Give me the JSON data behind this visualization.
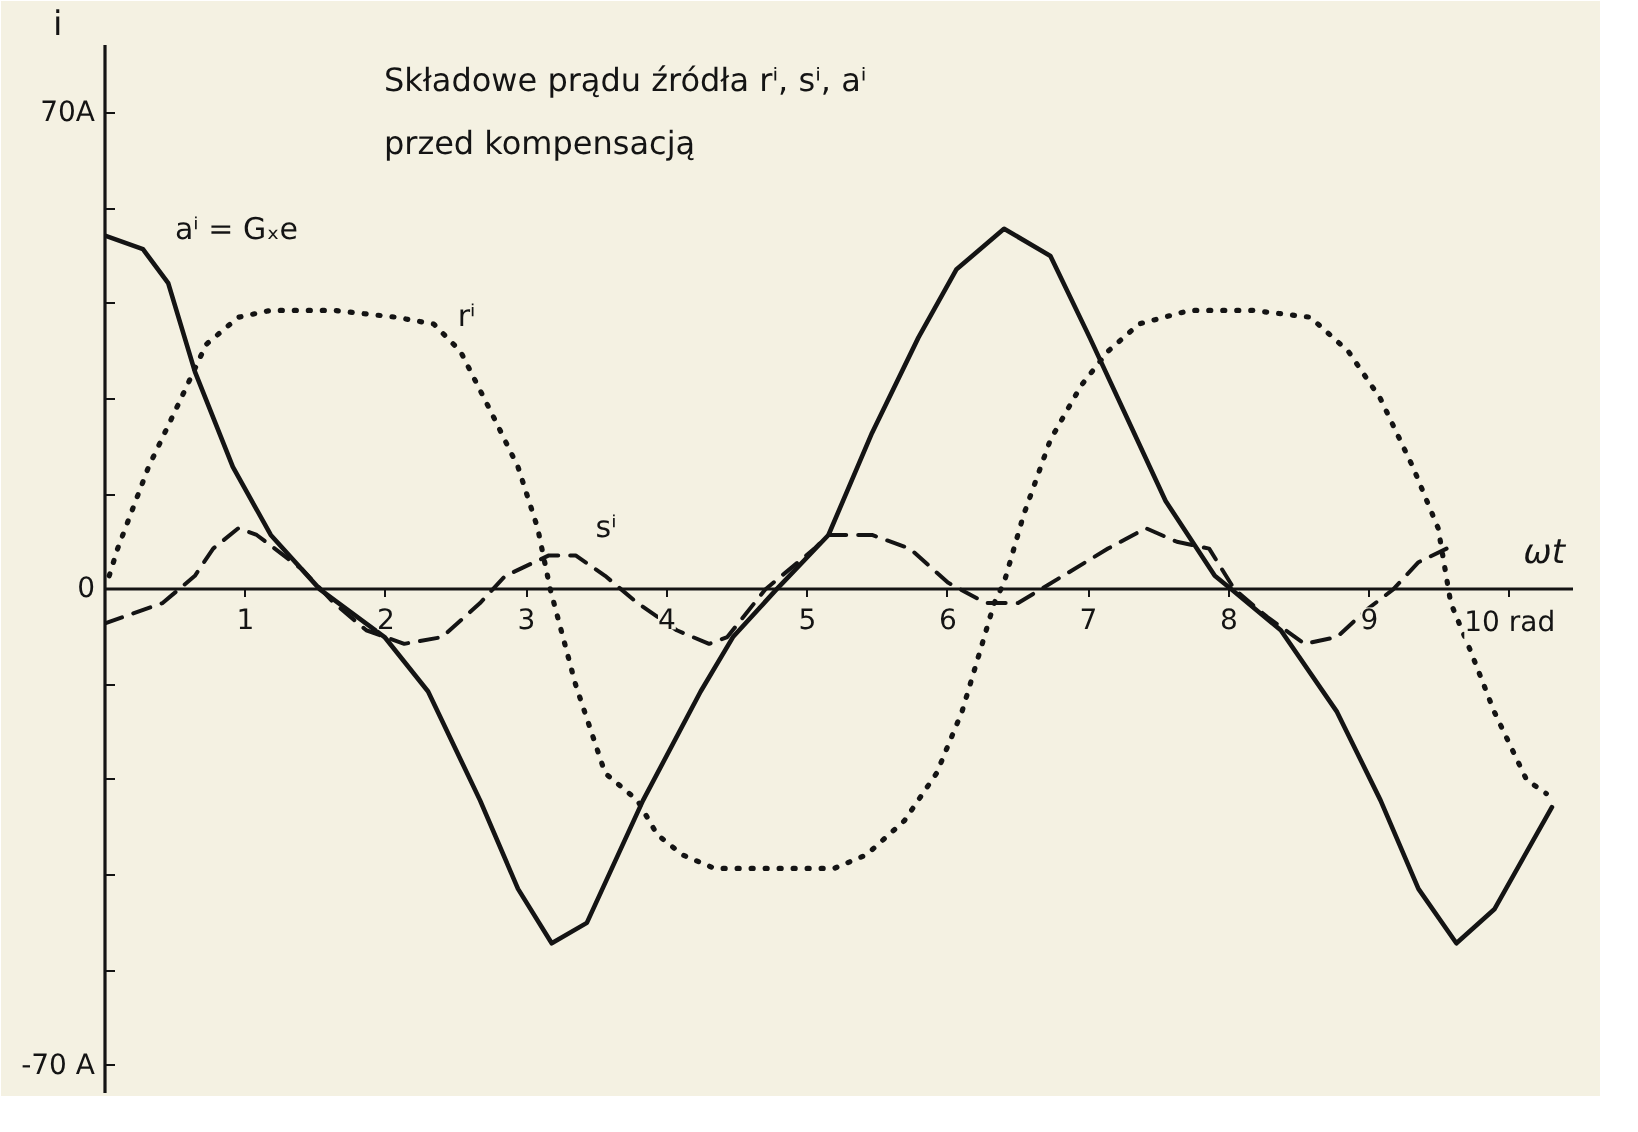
{
  "chart_data": {
    "type": "line",
    "title": "Składowe prądu źródła rⁱ, sⁱ, aⁱ",
    "subtitle": "przed kompensacją",
    "xlabel": "ωt",
    "ylabel": "i",
    "xlim": [
      0,
      10.45
    ],
    "ylim": [
      -74,
      80
    ],
    "xticks": [
      1,
      2,
      3,
      4,
      5,
      6,
      7,
      8,
      9,
      {
        "value": 10,
        "label": "10 rad"
      }
    ],
    "yticks": [
      {
        "value": -70,
        "label": "-70 A"
      },
      {
        "value": -56,
        "label": null
      },
      {
        "value": -42,
        "label": null
      },
      {
        "value": -28,
        "label": null
      },
      {
        "value": -14,
        "label": null
      },
      0,
      {
        "value": 14,
        "label": null
      },
      {
        "value": 28,
        "label": null
      },
      {
        "value": 42,
        "label": null
      },
      {
        "value": 56,
        "label": null
      },
      {
        "value": 70,
        "label": "70A"
      }
    ],
    "grid": false,
    "series": [
      {
        "name": "rⁱ",
        "color": "#141414",
        "line_style": "dotted",
        "x": [
          0.03,
          0.09,
          0.31,
          0.54,
          0.72,
          0.95,
          1.18,
          1.63,
          2.07,
          2.34,
          2.53,
          2.75,
          2.94,
          3.08,
          3.17,
          3.35,
          3.56,
          3.79,
          3.93,
          4.11,
          4.34,
          4.78,
          5.19,
          5.42,
          5.69,
          5.92,
          6.1,
          6.23,
          6.33,
          6.4,
          6.54,
          6.73,
          6.95,
          7.14,
          7.36,
          7.72,
          8.17,
          8.58,
          8.85,
          9.08,
          9.31,
          9.49,
          9.58,
          9.72,
          9.89,
          10.12,
          10.26
        ],
        "values": [
          2,
          6,
          18,
          28,
          36,
          40,
          41,
          41,
          40,
          39,
          35,
          26,
          18,
          9,
          0,
          -14,
          -27,
          -31,
          -36,
          -39,
          -41,
          -41,
          -41,
          -39,
          -34,
          -27,
          -18,
          -9,
          -2,
          1,
          11,
          22,
          30,
          35,
          39,
          41,
          41,
          40,
          35,
          28,
          18,
          9,
          -2,
          -9,
          -18,
          -28,
          -30
        ]
      },
      {
        "name": "sⁱ",
        "color": "#141414",
        "line_style": "dashed",
        "x": [
          0,
          0.41,
          0.64,
          0.77,
          0.95,
          1.08,
          1.4,
          1.63,
          1.86,
          2.13,
          2.4,
          2.67,
          2.85,
          3.16,
          3.35,
          3.56,
          3.79,
          4.07,
          4.3,
          4.43,
          4.7,
          5.05,
          5.15,
          5.46,
          5.73,
          6.0,
          6.27,
          6.5,
          6.82,
          7.14,
          7.41,
          7.63,
          7.86,
          8.04,
          8.27,
          8.54,
          8.77,
          8.98,
          9.17,
          9.35,
          9.55
        ],
        "values": [
          -5,
          -2,
          2,
          6,
          9,
          8,
          3,
          -2,
          -6,
          -8,
          -7,
          -2,
          2,
          5,
          5,
          2,
          -2,
          -6,
          -8,
          -7,
          0,
          6,
          8,
          8,
          6,
          1,
          -2,
          -2,
          2,
          6,
          9,
          7,
          6,
          0,
          -4,
          -8,
          -7,
          -3,
          0,
          4,
          6
        ]
      },
      {
        "name": "aⁱ = Gₓe",
        "color": "#141414",
        "line_style": "solid",
        "x": [
          0,
          0.27,
          0.45,
          0.64,
          0.91,
          1.18,
          1.53,
          1.99,
          2.3,
          2.67,
          2.94,
          3.18,
          3.43,
          3.83,
          4.24,
          4.47,
          4.78,
          5.15,
          5.46,
          5.79,
          6.06,
          6.4,
          6.73,
          7.01,
          7.28,
          7.55,
          7.9,
          8.02,
          8.37,
          8.77,
          9.08,
          9.35,
          9.62,
          9.89,
          10.3
        ],
        "values": [
          52,
          50,
          45,
          32,
          18,
          8,
          0,
          -7,
          -15,
          -31,
          -44,
          -52,
          -49,
          -31,
          -15,
          -7,
          0,
          8,
          23,
          37,
          47,
          53,
          49,
          37,
          25,
          13,
          2,
          0,
          -6,
          -18,
          -31,
          -44,
          -52,
          -47,
          -32
        ]
      }
    ]
  }
}
